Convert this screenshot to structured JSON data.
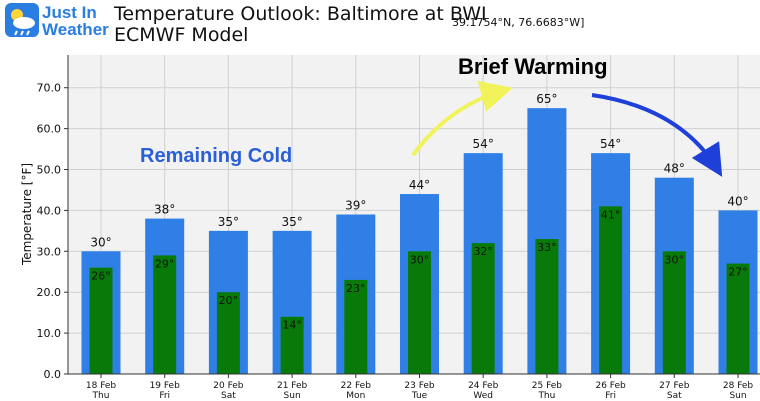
{
  "logo": {
    "line1": "Just In",
    "line2": "Weather"
  },
  "header": {
    "title_line1": "Temperature Outlook: Baltimore at BWI",
    "title_line2": "ECMWF Model",
    "coords": "39.1754°N, 76.6683°W]"
  },
  "chart_data": {
    "type": "bar",
    "ylabel": "Temperature [°F]",
    "ylim": [
      0,
      78
    ],
    "yticks": [
      "0.0",
      "10.0",
      "20.0",
      "30.0",
      "40.0",
      "50.0",
      "60.0",
      "70.0"
    ],
    "categories": [
      "18 Feb",
      "19 Feb",
      "20 Feb",
      "21 Feb",
      "22 Feb",
      "23 Feb",
      "24 Feb",
      "25 Feb",
      "26 Feb",
      "27 Feb",
      "28 Feb"
    ],
    "days": [
      "Thu",
      "Fri",
      "Sat",
      "Sun",
      "Mon",
      "Tue",
      "Wed",
      "Thu",
      "Fri",
      "Sat",
      "Sun"
    ],
    "series": [
      {
        "values": [
          30,
          38,
          35,
          35,
          39,
          44,
          54,
          65,
          54,
          48,
          40
        ],
        "color": "#2f7fe6"
      },
      {
        "values": [
          26,
          29,
          20,
          14,
          23,
          30,
          32,
          33,
          41,
          30,
          27
        ],
        "color": "#087a0a"
      }
    ],
    "high_labels": [
      "30°",
      "38°",
      "35°",
      "35°",
      "39°",
      "44°",
      "54°",
      "65°",
      "54°",
      "48°",
      "40°"
    ],
    "low_labels": [
      "26°",
      "29°",
      "20°",
      "14°",
      "23°",
      "30°",
      "32°",
      "33°",
      "41°",
      "30°",
      "27°"
    ],
    "grid": true,
    "annotations": [
      {
        "text": "Remaining Cold",
        "color": "#2a5fd6"
      },
      {
        "text": "Brief Warming",
        "color": "#000000"
      }
    ],
    "arrow_colors": [
      "#f2f25a",
      "#1f3fd9"
    ]
  }
}
